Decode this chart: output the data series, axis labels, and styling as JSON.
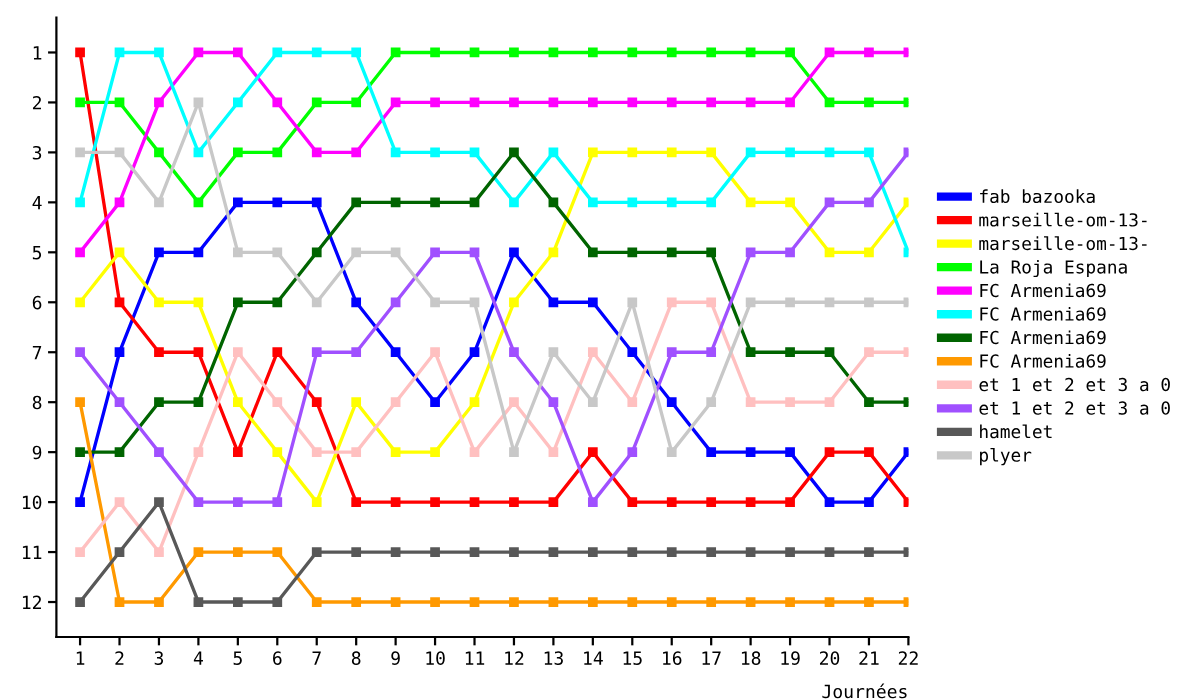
{
  "chart_data": {
    "type": "line",
    "xlabel": "Journées",
    "x": [
      1,
      2,
      3,
      4,
      5,
      6,
      7,
      8,
      9,
      10,
      11,
      12,
      13,
      14,
      15,
      16,
      17,
      18,
      19,
      20,
      21,
      22
    ],
    "xlim": [
      0.4,
      22
    ],
    "xticks": [
      1,
      2,
      3,
      4,
      5,
      6,
      7,
      8,
      9,
      10,
      11,
      12,
      13,
      14,
      15,
      16,
      17,
      18,
      19,
      20,
      21,
      22
    ],
    "ylim": [
      12.7,
      0.3
    ],
    "yticks": [
      1,
      2,
      3,
      4,
      5,
      6,
      7,
      8,
      9,
      10,
      11,
      12
    ],
    "grid": false,
    "legend": "right",
    "marker": "square",
    "line_style": "solid",
    "series": [
      {
        "name": "fab bazooka",
        "color": "#0000ff",
        "values": [
          10,
          7,
          5,
          5,
          4,
          4,
          4,
          6,
          7,
          8,
          7,
          5,
          6,
          6,
          7,
          8,
          9,
          9,
          9,
          10,
          10,
          9
        ]
      },
      {
        "name": "marseille-om-13-",
        "color": "#ff0000",
        "values": [
          1,
          6,
          7,
          7,
          9,
          7,
          8,
          10,
          10,
          10,
          10,
          10,
          10,
          9,
          10,
          10,
          10,
          10,
          10,
          9,
          9,
          10
        ]
      },
      {
        "name": "marseille-om-13-",
        "color": "#ffff00",
        "values": [
          6,
          5,
          6,
          6,
          8,
          9,
          10,
          8,
          9,
          9,
          8,
          6,
          5,
          3,
          3,
          3,
          3,
          4,
          4,
          5,
          5,
          4
        ]
      },
      {
        "name": "La Roja Espana",
        "color": "#00ff00",
        "values": [
          2,
          2,
          3,
          4,
          3,
          3,
          2,
          2,
          1,
          1,
          1,
          1,
          1,
          1,
          1,
          1,
          1,
          1,
          1,
          2,
          2,
          2
        ]
      },
      {
        "name": "FC Armenia69",
        "color": "#ff00ff",
        "values": [
          5,
          4,
          2,
          1,
          1,
          2,
          3,
          3,
          2,
          2,
          2,
          2,
          2,
          2,
          2,
          2,
          2,
          2,
          2,
          1,
          1,
          1
        ]
      },
      {
        "name": "FC Armenia69",
        "color": "#00ffff",
        "values": [
          4,
          1,
          1,
          3,
          2,
          1,
          1,
          1,
          3,
          3,
          3,
          4,
          3,
          4,
          4,
          4,
          4,
          3,
          3,
          3,
          3,
          5
        ]
      },
      {
        "name": "FC Armenia69",
        "color": "#006400",
        "values": [
          9,
          9,
          8,
          8,
          6,
          6,
          5,
          4,
          4,
          4,
          4,
          3,
          4,
          5,
          5,
          5,
          5,
          7,
          7,
          7,
          8,
          8
        ]
      },
      {
        "name": "FC Armenia69",
        "color": "#ff9900",
        "values": [
          8,
          12,
          12,
          11,
          11,
          11,
          12,
          12,
          12,
          12,
          12,
          12,
          12,
          12,
          12,
          12,
          12,
          12,
          12,
          12,
          12,
          12
        ]
      },
      {
        "name": "et 1 et 2 et 3 a 0",
        "color": "#ffc0c0",
        "values": [
          11,
          10,
          11,
          9,
          7,
          8,
          9,
          9,
          8,
          7,
          9,
          8,
          9,
          7,
          8,
          6,
          6,
          8,
          8,
          8,
          7,
          7
        ]
      },
      {
        "name": "et 1 et 2 et 3 a 0",
        "color": "#a050ff",
        "values": [
          7,
          8,
          9,
          10,
          10,
          10,
          7,
          7,
          6,
          5,
          5,
          7,
          8,
          10,
          9,
          7,
          7,
          5,
          5,
          4,
          4,
          3
        ]
      },
      {
        "name": "hamelet",
        "color": "#585858",
        "values": [
          12,
          11,
          10,
          12,
          12,
          12,
          11,
          11,
          11,
          11,
          11,
          11,
          11,
          11,
          11,
          11,
          11,
          11,
          11,
          11,
          11,
          11
        ]
      },
      {
        "name": "plyer",
        "color": "#c8c8c8",
        "values": [
          3,
          3,
          4,
          2,
          5,
          5,
          6,
          5,
          5,
          6,
          6,
          9,
          7,
          8,
          6,
          9,
          8,
          6,
          6,
          6,
          6,
          6
        ]
      }
    ]
  }
}
